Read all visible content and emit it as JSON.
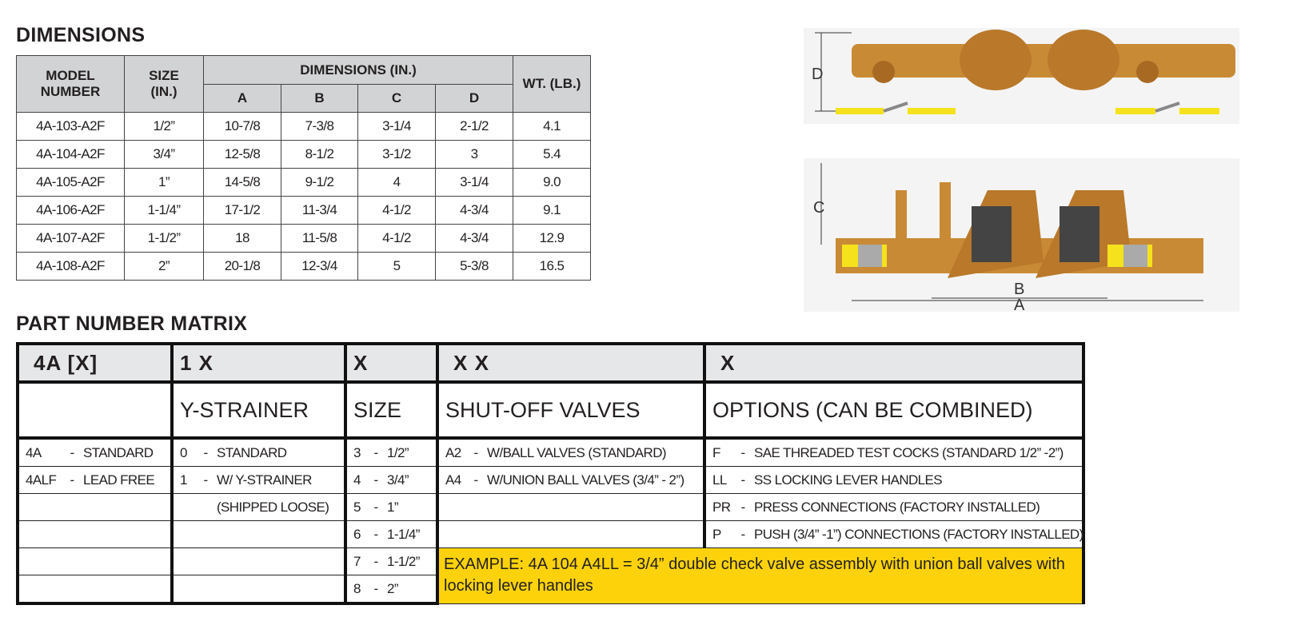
{
  "dimensions": {
    "title": "DIMENSIONS",
    "headers": {
      "model": "MODEL NUMBER",
      "size": "SIZE (IN.)",
      "dims": "DIMENSIONS (IN.)",
      "a": "A",
      "b": "B",
      "c": "C",
      "d": "D",
      "wt": "WT. (LB.)"
    },
    "rows": [
      [
        "4A-103-A2F",
        "1/2”",
        "10-7/8",
        "7-3/8",
        "3-1/4",
        "2-1/2",
        "4.1"
      ],
      [
        "4A-104-A2F",
        "3/4”",
        "12-5/8",
        "8-1/2",
        "3-1/2",
        "3",
        "5.4"
      ],
      [
        "4A-105-A2F",
        "1”",
        "14-5/8",
        "9-1/2",
        "4",
        "3-1/4",
        "9.0"
      ],
      [
        "4A-106-A2F",
        "1-1/4”",
        "17-1/2",
        "11-3/4",
        "4-1/2",
        "4-3/4",
        "9.1"
      ],
      [
        "4A-107-A2F",
        "1-1/2”",
        "18",
        "11-5/8",
        "4-1/2",
        "4-3/4",
        "12.9"
      ],
      [
        "4A-108-A2F",
        "2”",
        "20-1/8",
        "12-3/4",
        "5",
        "5-3/8",
        "16.5"
      ]
    ]
  },
  "diagram": {
    "labels": {
      "d": "D",
      "c": "C",
      "b": "B",
      "a": "A"
    },
    "colors": {
      "bronze": "#c98a35",
      "handle": "#f5e21c"
    }
  },
  "matrix": {
    "title": "PART NUMBER MATRIX",
    "codes": [
      "4A [X]",
      "1 X",
      "X",
      "X X",
      "X"
    ],
    "titles": [
      "",
      "Y-STRAINER",
      "SIZE",
      "SHUT-OFF VALVES",
      "OPTIONS (CAN BE COMBINED)"
    ],
    "col1": [
      [
        "4A",
        "STANDARD"
      ],
      [
        "4ALF",
        "LEAD FREE"
      ]
    ],
    "col2": [
      [
        "0",
        "STANDARD"
      ],
      [
        "1",
        "W/ Y-STRAINER"
      ],
      [
        "",
        "(SHIPPED LOOSE)"
      ]
    ],
    "col3": [
      [
        "3",
        "1/2”"
      ],
      [
        "4",
        "3/4”"
      ],
      [
        "5",
        "1”"
      ],
      [
        "6",
        "1-1/4”"
      ],
      [
        "7",
        "1-1/2”"
      ],
      [
        "8",
        "2”"
      ]
    ],
    "col4": [
      [
        "A2",
        "W/BALL VALVES (STANDARD)"
      ],
      [
        "A4",
        "W/UNION BALL VALVES (3/4” - 2”)"
      ]
    ],
    "col5": [
      [
        "F",
        "SAE THREADED TEST COCKS (STANDARD 1/2” -2”)"
      ],
      [
        "LL",
        "SS LOCKING LEVER HANDLES"
      ],
      [
        "PR",
        "PRESS CONNECTIONS (FACTORY INSTALLED)"
      ],
      [
        "P",
        "PUSH (3/4” -1”) CONNECTIONS (FACTORY INSTALLED)"
      ]
    ],
    "dash": "-",
    "example": "EXAMPLE: 4A 104 A4LL = 3/4” double check valve assembly with union ball valves with locking lever handles",
    "example_color": "#fdd20a"
  }
}
